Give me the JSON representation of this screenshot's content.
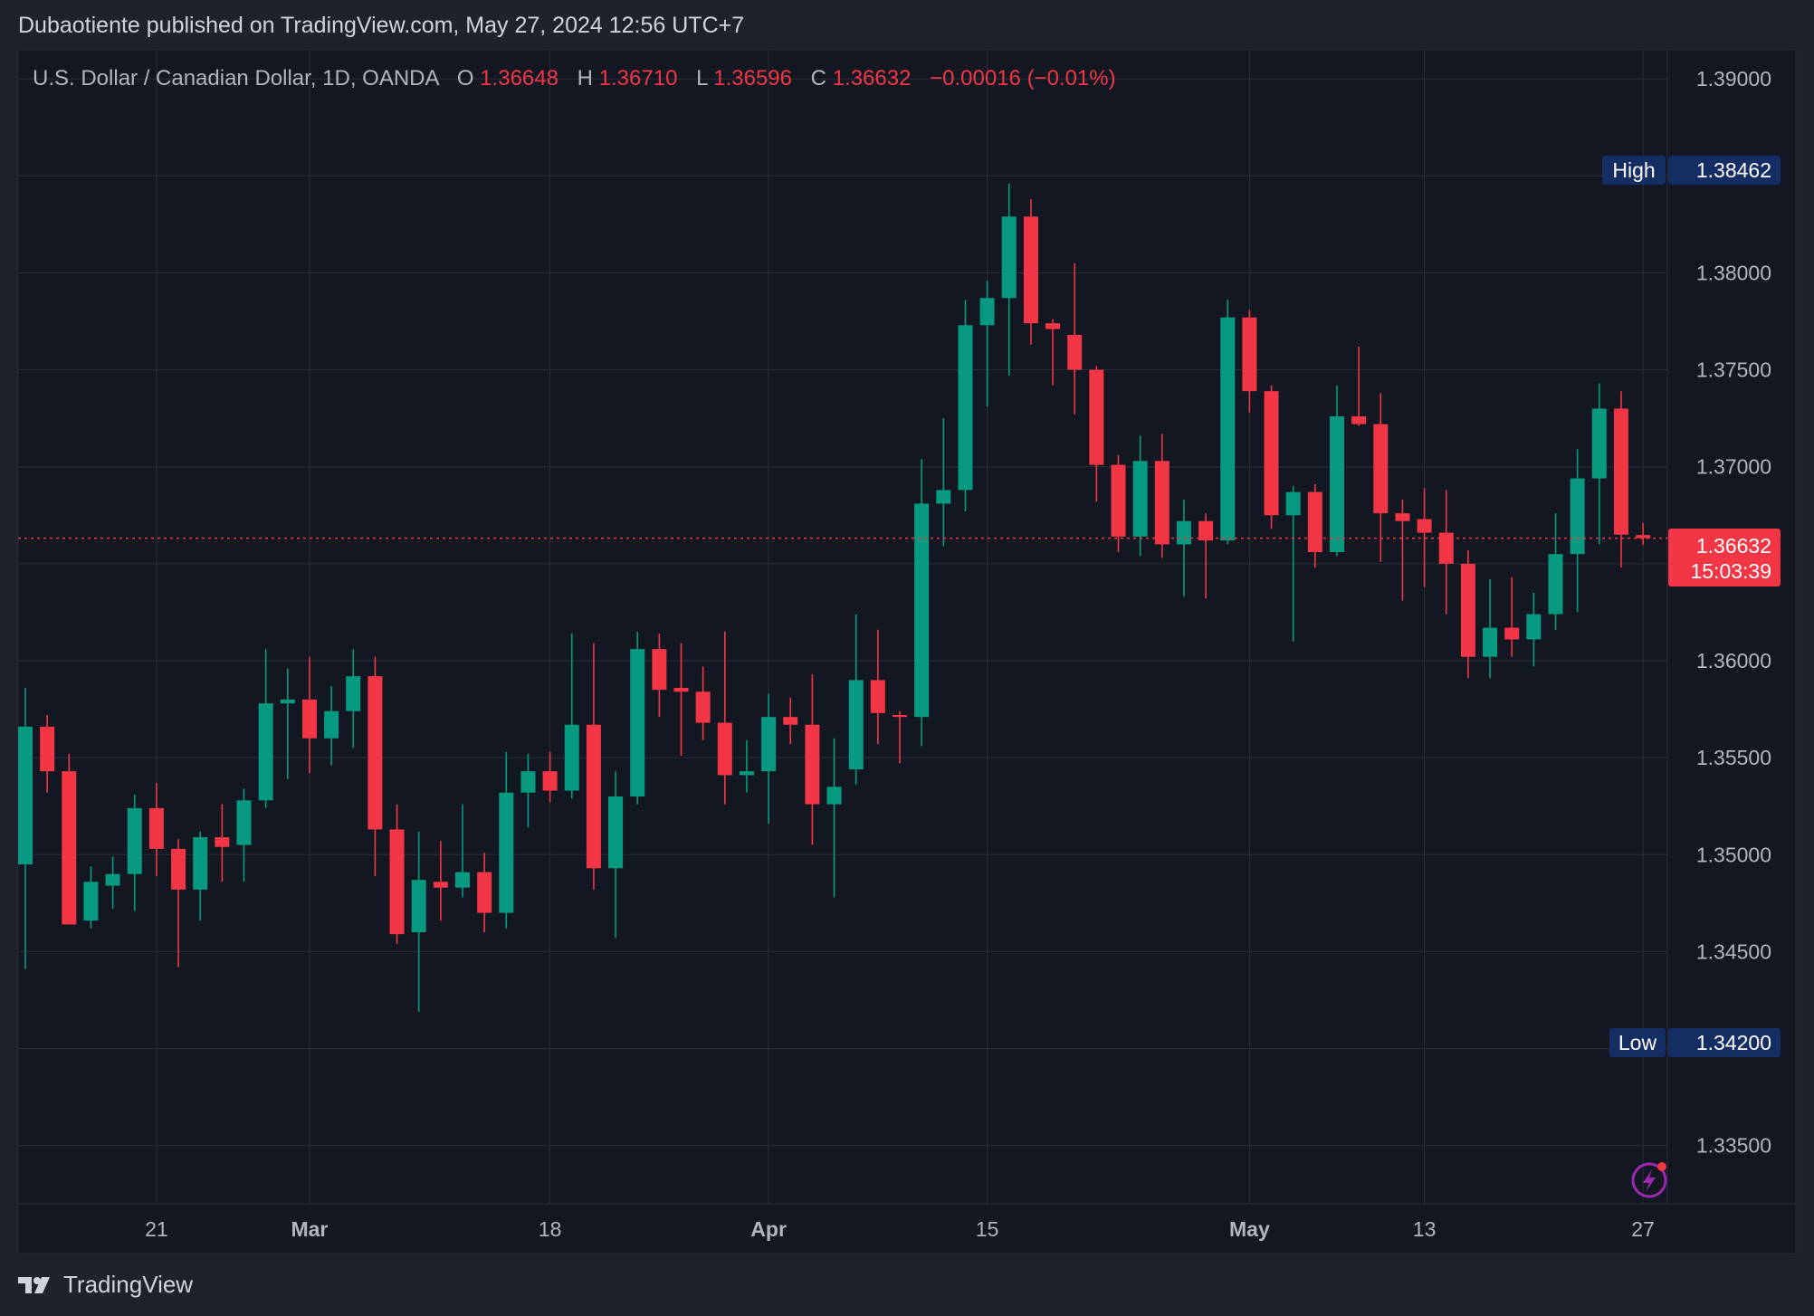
{
  "header": {
    "publisher": "Dubaotiente published on TradingView.com, May 27, 2024 12:56 UTC+7"
  },
  "legend": {
    "symbol": "U.S. Dollar / Canadian Dollar, 1D, OANDA",
    "open_label": "O",
    "open": "1.36648",
    "high_label": "H",
    "high": "1.36710",
    "low_label": "L",
    "low": "1.36596",
    "close_label": "C",
    "close": "1.36632",
    "change": "−0.00016 (−0.01%)"
  },
  "markers": {
    "high_label": "High",
    "high_value": "1.38462",
    "low_label": "Low",
    "low_value": "1.34200",
    "last_price": "1.36632",
    "countdown": "15:03:39"
  },
  "footer": {
    "brand": "TradingView"
  },
  "colors": {
    "background": "#131722",
    "frame": "#1e222d",
    "grid": "#2a2e39",
    "up": "#089981",
    "down": "#f23645",
    "text": "#b2b5be",
    "badge": "#142d63",
    "price_tag": "#f23645",
    "alert_icon": "#9c27b0"
  },
  "icons": {
    "alert": "lightning-alert-icon",
    "brand": "tradingview-logo-icon"
  },
  "chart_data": {
    "type": "candlestick",
    "ylim": [
      1.332,
      1.3915
    ],
    "y_ticks": [
      "1.33500",
      "1.34000",
      "1.34500",
      "1.35000",
      "1.35500",
      "1.36000",
      "1.36500",
      "1.37000",
      "1.37500",
      "1.38000",
      "1.38500",
      "1.39000"
    ],
    "x_ticks": [
      {
        "label": "21",
        "index": 6
      },
      {
        "label": "Mar",
        "index": 13
      },
      {
        "label": "18",
        "index": 24
      },
      {
        "label": "Apr",
        "index": 34
      },
      {
        "label": "15",
        "index": 44
      },
      {
        "label": "May",
        "index": 56
      },
      {
        "label": "13",
        "index": 64
      },
      {
        "label": "27",
        "index": 74
      }
    ],
    "candles": [
      {
        "o": 1.3495,
        "h": 1.3586,
        "l": 1.3441,
        "c": 1.3566
      },
      {
        "o": 1.3566,
        "h": 1.3572,
        "l": 1.3532,
        "c": 1.3543
      },
      {
        "o": 1.3543,
        "h": 1.3552,
        "l": 1.3464,
        "c": 1.3464
      },
      {
        "o": 1.3466,
        "h": 1.3494,
        "l": 1.3462,
        "c": 1.3486
      },
      {
        "o": 1.3484,
        "h": 1.3499,
        "l": 1.3472,
        "c": 1.349
      },
      {
        "o": 1.349,
        "h": 1.3531,
        "l": 1.3471,
        "c": 1.3524
      },
      {
        "o": 1.3524,
        "h": 1.3537,
        "l": 1.3489,
        "c": 1.3503
      },
      {
        "o": 1.3503,
        "h": 1.3508,
        "l": 1.3442,
        "c": 1.3482
      },
      {
        "o": 1.3482,
        "h": 1.3512,
        "l": 1.3466,
        "c": 1.3509
      },
      {
        "o": 1.3509,
        "h": 1.3526,
        "l": 1.3486,
        "c": 1.3504
      },
      {
        "o": 1.3505,
        "h": 1.3534,
        "l": 1.3486,
        "c": 1.3528
      },
      {
        "o": 1.3528,
        "h": 1.3606,
        "l": 1.3524,
        "c": 1.3578
      },
      {
        "o": 1.3578,
        "h": 1.3596,
        "l": 1.3539,
        "c": 1.358
      },
      {
        "o": 1.358,
        "h": 1.3602,
        "l": 1.3542,
        "c": 1.356
      },
      {
        "o": 1.356,
        "h": 1.3587,
        "l": 1.3546,
        "c": 1.3574
      },
      {
        "o": 1.3574,
        "h": 1.3606,
        "l": 1.3555,
        "c": 1.3592
      },
      {
        "o": 1.3592,
        "h": 1.3602,
        "l": 1.3489,
        "c": 1.3513
      },
      {
        "o": 1.3513,
        "h": 1.3526,
        "l": 1.3454,
        "c": 1.3459
      },
      {
        "o": 1.346,
        "h": 1.3512,
        "l": 1.3419,
        "c": 1.3487
      },
      {
        "o": 1.3486,
        "h": 1.3507,
        "l": 1.3466,
        "c": 1.3483
      },
      {
        "o": 1.3483,
        "h": 1.3526,
        "l": 1.3478,
        "c": 1.3491
      },
      {
        "o": 1.3491,
        "h": 1.3501,
        "l": 1.346,
        "c": 1.347
      },
      {
        "o": 1.347,
        "h": 1.3553,
        "l": 1.3462,
        "c": 1.3532
      },
      {
        "o": 1.3532,
        "h": 1.3552,
        "l": 1.3514,
        "c": 1.3543
      },
      {
        "o": 1.3543,
        "h": 1.3553,
        "l": 1.3527,
        "c": 1.3533
      },
      {
        "o": 1.3533,
        "h": 1.3614,
        "l": 1.3529,
        "c": 1.3567
      },
      {
        "o": 1.3567,
        "h": 1.3609,
        "l": 1.3482,
        "c": 1.3493
      },
      {
        "o": 1.3493,
        "h": 1.3543,
        "l": 1.3457,
        "c": 1.353
      },
      {
        "o": 1.353,
        "h": 1.3615,
        "l": 1.3526,
        "c": 1.3606
      },
      {
        "o": 1.3606,
        "h": 1.3614,
        "l": 1.3571,
        "c": 1.3585
      },
      {
        "o": 1.3586,
        "h": 1.3609,
        "l": 1.3551,
        "c": 1.3584
      },
      {
        "o": 1.3584,
        "h": 1.3597,
        "l": 1.3559,
        "c": 1.3568
      },
      {
        "o": 1.3568,
        "h": 1.3615,
        "l": 1.3526,
        "c": 1.3541
      },
      {
        "o": 1.3541,
        "h": 1.3559,
        "l": 1.3532,
        "c": 1.3543
      },
      {
        "o": 1.3543,
        "h": 1.3583,
        "l": 1.3516,
        "c": 1.3571
      },
      {
        "o": 1.3571,
        "h": 1.3581,
        "l": 1.3557,
        "c": 1.3567
      },
      {
        "o": 1.3567,
        "h": 1.3593,
        "l": 1.3505,
        "c": 1.3526
      },
      {
        "o": 1.3526,
        "h": 1.356,
        "l": 1.3478,
        "c": 1.3535
      },
      {
        "o": 1.3544,
        "h": 1.3624,
        "l": 1.3536,
        "c": 1.359
      },
      {
        "o": 1.359,
        "h": 1.3616,
        "l": 1.3557,
        "c": 1.3573
      },
      {
        "o": 1.3572,
        "h": 1.3574,
        "l": 1.3547,
        "c": 1.3571
      },
      {
        "o": 1.3571,
        "h": 1.3704,
        "l": 1.3556,
        "c": 1.3681
      },
      {
        "o": 1.3681,
        "h": 1.3725,
        "l": 1.3659,
        "c": 1.3688
      },
      {
        "o": 1.3688,
        "h": 1.3786,
        "l": 1.3677,
        "c": 1.3773
      },
      {
        "o": 1.3773,
        "h": 1.3796,
        "l": 1.3731,
        "c": 1.3787
      },
      {
        "o": 1.3787,
        "h": 1.3846,
        "l": 1.3747,
        "c": 1.3829
      },
      {
        "o": 1.3829,
        "h": 1.3838,
        "l": 1.3763,
        "c": 1.3774
      },
      {
        "o": 1.3774,
        "h": 1.3776,
        "l": 1.3742,
        "c": 1.3771
      },
      {
        "o": 1.3768,
        "h": 1.3805,
        "l": 1.3727,
        "c": 1.375
      },
      {
        "o": 1.375,
        "h": 1.3752,
        "l": 1.3682,
        "c": 1.3701
      },
      {
        "o": 1.3701,
        "h": 1.3706,
        "l": 1.3656,
        "c": 1.3664
      },
      {
        "o": 1.3664,
        "h": 1.3716,
        "l": 1.3654,
        "c": 1.3703
      },
      {
        "o": 1.3703,
        "h": 1.3717,
        "l": 1.3653,
        "c": 1.366
      },
      {
        "o": 1.366,
        "h": 1.3683,
        "l": 1.3633,
        "c": 1.3672
      },
      {
        "o": 1.3672,
        "h": 1.3676,
        "l": 1.3632,
        "c": 1.3662
      },
      {
        "o": 1.3662,
        "h": 1.3786,
        "l": 1.366,
        "c": 1.3777
      },
      {
        "o": 1.3777,
        "h": 1.3781,
        "l": 1.3728,
        "c": 1.3739
      },
      {
        "o": 1.3739,
        "h": 1.3742,
        "l": 1.3668,
        "c": 1.3675
      },
      {
        "o": 1.3675,
        "h": 1.369,
        "l": 1.361,
        "c": 1.3687
      },
      {
        "o": 1.3687,
        "h": 1.3691,
        "l": 1.3648,
        "c": 1.3656
      },
      {
        "o": 1.3656,
        "h": 1.3742,
        "l": 1.3654,
        "c": 1.3726
      },
      {
        "o": 1.3726,
        "h": 1.3762,
        "l": 1.3721,
        "c": 1.3722
      },
      {
        "o": 1.3722,
        "h": 1.3738,
        "l": 1.3651,
        "c": 1.3676
      },
      {
        "o": 1.3676,
        "h": 1.3683,
        "l": 1.3631,
        "c": 1.3672
      },
      {
        "o": 1.3673,
        "h": 1.3689,
        "l": 1.3638,
        "c": 1.3666
      },
      {
        "o": 1.3666,
        "h": 1.3688,
        "l": 1.3624,
        "c": 1.365
      },
      {
        "o": 1.365,
        "h": 1.3657,
        "l": 1.3591,
        "c": 1.3602
      },
      {
        "o": 1.3602,
        "h": 1.3642,
        "l": 1.3591,
        "c": 1.3617
      },
      {
        "o": 1.3617,
        "h": 1.3643,
        "l": 1.3602,
        "c": 1.3611
      },
      {
        "o": 1.3611,
        "h": 1.3635,
        "l": 1.3597,
        "c": 1.3624
      },
      {
        "o": 1.3624,
        "h": 1.3676,
        "l": 1.3616,
        "c": 1.3655
      },
      {
        "o": 1.3655,
        "h": 1.3709,
        "l": 1.3625,
        "c": 1.3694
      },
      {
        "o": 1.3694,
        "h": 1.3743,
        "l": 1.366,
        "c": 1.373
      },
      {
        "o": 1.373,
        "h": 1.3739,
        "l": 1.3648,
        "c": 1.3665
      },
      {
        "o": 1.36648,
        "h": 1.3671,
        "l": 1.36596,
        "c": 1.36632
      }
    ]
  }
}
